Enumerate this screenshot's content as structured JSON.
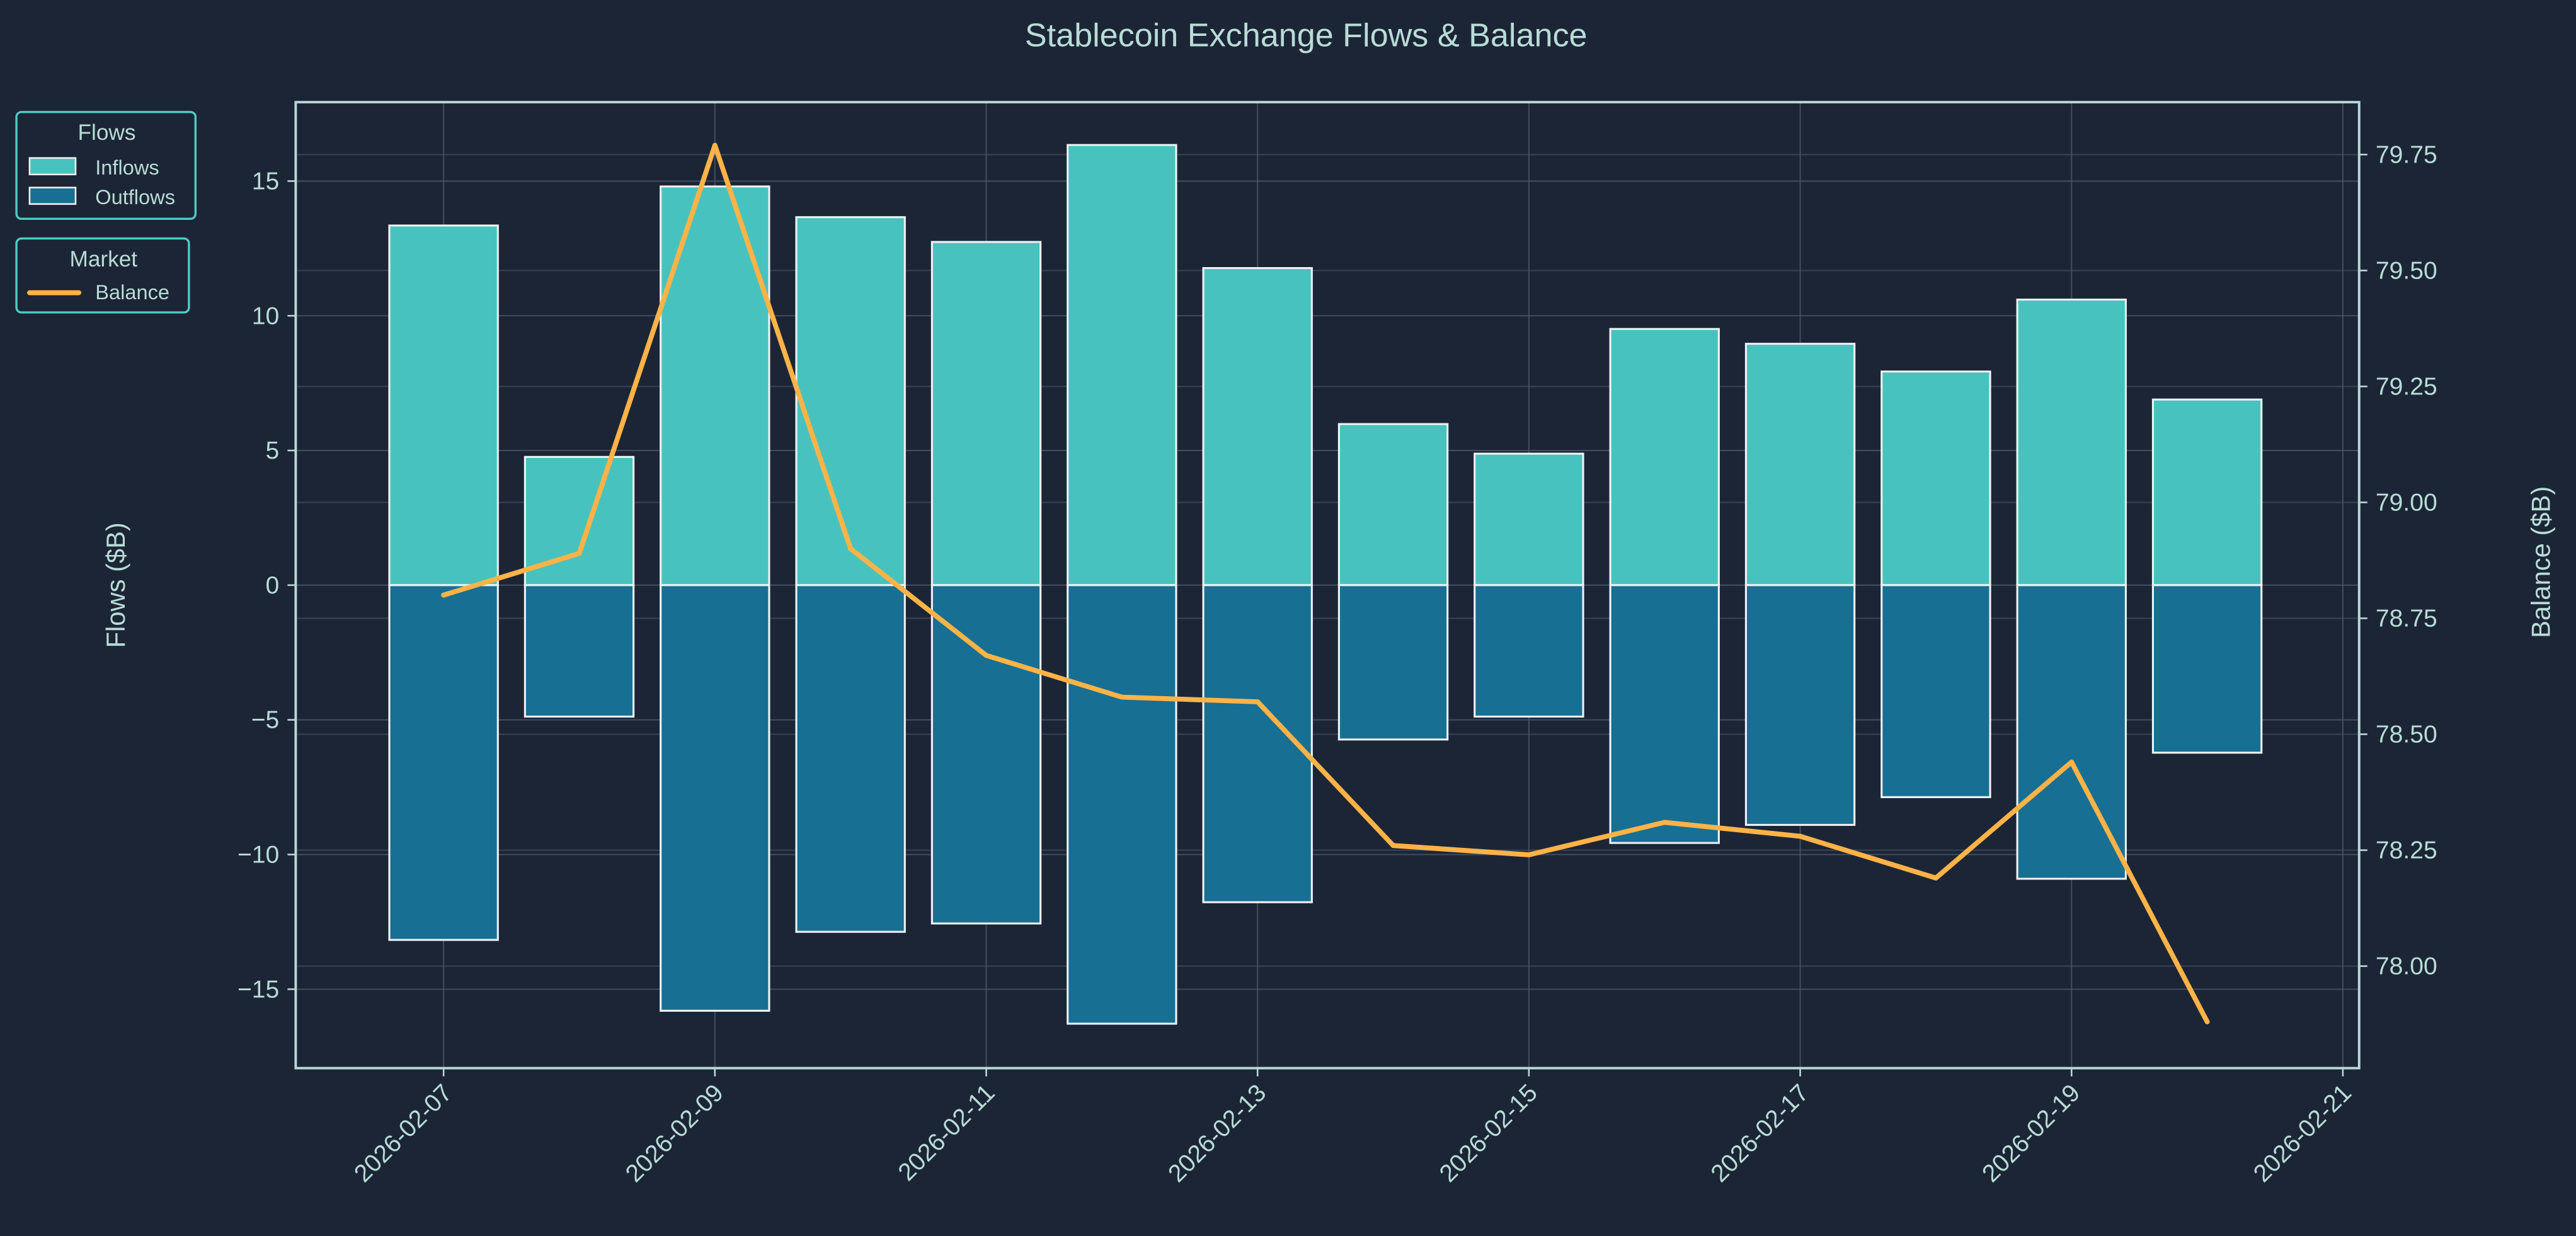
{
  "chart_data": {
    "type": "bar+line",
    "title": "Stablecoin Exchange Flows & Balance",
    "ylabel": "Flows ($B)",
    "y2label": "Balance ($B)",
    "xlabel": "",
    "dates": [
      "2026-02-07",
      "2026-02-08",
      "2026-02-09",
      "2026-02-10",
      "2026-02-11",
      "2026-02-12",
      "2026-02-13",
      "2026-02-14",
      "2026-02-15",
      "2026-02-16",
      "2026-02-17",
      "2026-02-18",
      "2026-02-19",
      "2026-02-20"
    ],
    "series": [
      {
        "name": "Inflows",
        "type": "bar",
        "axis": "left",
        "color": "#4ecdc4",
        "values": [
          13.35,
          4.76,
          14.8,
          13.66,
          12.74,
          16.34,
          11.77,
          5.98,
          4.88,
          9.51,
          8.96,
          7.93,
          10.6,
          6.89
        ]
      },
      {
        "name": "Outflows",
        "type": "bar",
        "axis": "left",
        "color": "#1a759f",
        "values": [
          -13.17,
          -4.88,
          -15.8,
          -12.87,
          -12.56,
          -16.28,
          -11.77,
          -5.73,
          -4.88,
          -9.57,
          -8.9,
          -7.87,
          -10.9,
          -6.22
        ]
      },
      {
        "name": "Balance",
        "type": "line",
        "axis": "right",
        "color": "#ffb347",
        "values": [
          78.8,
          78.89,
          79.77,
          78.9,
          78.67,
          78.58,
          78.57,
          78.26,
          78.24,
          78.31,
          78.28,
          78.19,
          78.44,
          77.88
        ]
      }
    ],
    "xticks": [
      "2026-02-07",
      "2026-02-09",
      "2026-02-11",
      "2026-02-13",
      "2026-02-15",
      "2026-02-17",
      "2026-02-19",
      "2026-02-21"
    ],
    "xlim_days_from_start": [
      -1.09,
      14.12
    ],
    "yticks": [
      -15,
      -10,
      -5,
      0,
      5,
      10,
      15
    ],
    "ytick_labels": [
      "−15",
      "−10",
      "−5",
      "0",
      "5",
      "10",
      "15"
    ],
    "ylim": [
      -17.93,
      17.93
    ],
    "y2ticks": [
      78.0,
      78.25,
      78.5,
      78.75,
      79.0,
      79.25,
      79.5,
      79.75
    ],
    "y2tick_labels": [
      "78.00",
      "78.25",
      "78.50",
      "78.75",
      "79.00",
      "79.25",
      "79.50",
      "79.75"
    ],
    "y2lim": [
      77.78,
      79.863
    ],
    "grid": true,
    "legends": [
      {
        "title": "Flows",
        "entries": [
          "Inflows",
          "Outflows"
        ],
        "placement": "outside-top-left"
      },
      {
        "title": "Market",
        "entries": [
          "Balance"
        ],
        "placement": "outside-top-left"
      }
    ]
  },
  "colors": {
    "background": "#1c2536",
    "text": "#b8dcd6",
    "legend_border": "#4ecdc4",
    "spine": "#b8d8d8",
    "grid": "#4a5668"
  }
}
